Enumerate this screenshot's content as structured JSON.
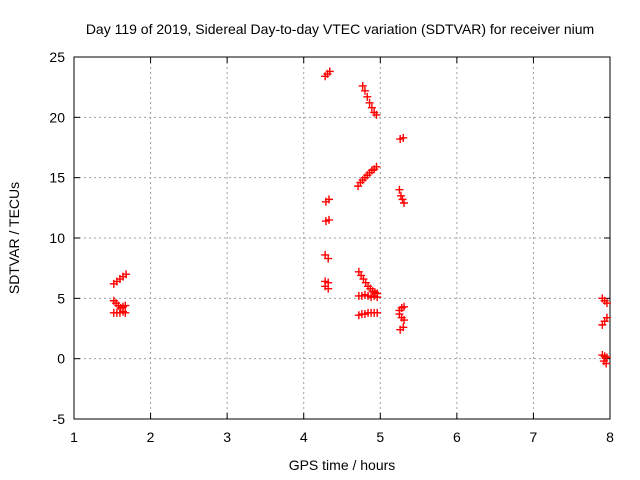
{
  "chart_data": {
    "type": "scatter",
    "title": "Day 119 of 2019, Sidereal Day-to-day VTEC variation (SDTVAR) for receiver nium",
    "xlabel": "GPS time / hours",
    "ylabel": "SDTVAR / TECUs",
    "xlim": [
      1,
      8
    ],
    "ylim": [
      -5,
      25
    ],
    "xticks": [
      "1",
      "2",
      "3",
      "4",
      "5",
      "6",
      "7",
      "8"
    ],
    "yticks": [
      "-5",
      "0",
      "5",
      "10",
      "15",
      "20",
      "25"
    ],
    "grid": true,
    "marker": "+",
    "color": "#ff0000",
    "series": [
      {
        "name": "seg1",
        "x": [
          1.52,
          1.56,
          1.6,
          1.64,
          1.68
        ],
        "y": [
          6.2,
          6.4,
          6.6,
          6.8,
          7.0
        ]
      },
      {
        "name": "seg2",
        "x": [
          1.52,
          1.55,
          1.58,
          1.61,
          1.64,
          1.67
        ],
        "y": [
          4.8,
          4.6,
          4.4,
          4.2,
          4.3,
          4.4
        ]
      },
      {
        "name": "seg3",
        "x": [
          1.52,
          1.56,
          1.6,
          1.64,
          1.67
        ],
        "y": [
          3.8,
          3.8,
          3.8,
          3.9,
          3.8
        ]
      },
      {
        "name": "seg4",
        "x": [
          4.28,
          4.31,
          4.34
        ],
        "y": [
          23.4,
          23.6,
          23.8
        ]
      },
      {
        "name": "seg5",
        "x": [
          4.29,
          4.33
        ],
        "y": [
          13.0,
          13.2
        ]
      },
      {
        "name": "seg6",
        "x": [
          4.29,
          4.33
        ],
        "y": [
          11.4,
          11.5
        ]
      },
      {
        "name": "seg7",
        "x": [
          4.28,
          4.32
        ],
        "y": [
          8.6,
          8.3
        ]
      },
      {
        "name": "seg8",
        "x": [
          4.28,
          4.32
        ],
        "y": [
          6.4,
          6.3
        ]
      },
      {
        "name": "seg9",
        "x": [
          4.28,
          4.32
        ],
        "y": [
          6.0,
          5.8
        ]
      },
      {
        "name": "seg10",
        "x": [
          4.77,
          4.8,
          4.83,
          4.86,
          4.89,
          4.92,
          4.95
        ],
        "y": [
          22.6,
          22.2,
          21.7,
          21.2,
          20.8,
          20.4,
          20.2
        ]
      },
      {
        "name": "seg11",
        "x": [
          4.71,
          4.74,
          4.77,
          4.8,
          4.83,
          4.86,
          4.89,
          4.92,
          4.95
        ],
        "y": [
          14.3,
          14.6,
          14.8,
          15.0,
          15.2,
          15.4,
          15.6,
          15.7,
          15.9
        ]
      },
      {
        "name": "seg12",
        "x": [
          4.72,
          4.75,
          4.78,
          4.81,
          4.84,
          4.87,
          4.9,
          4.93,
          4.96
        ],
        "y": [
          7.2,
          6.9,
          6.6,
          6.3,
          6.0,
          5.8,
          5.6,
          5.5,
          5.4
        ]
      },
      {
        "name": "seg13",
        "x": [
          4.72,
          4.76,
          4.8,
          4.84,
          4.88,
          4.92,
          4.96
        ],
        "y": [
          5.2,
          5.2,
          5.3,
          5.2,
          5.1,
          5.2,
          5.1
        ]
      },
      {
        "name": "seg14",
        "x": [
          4.72,
          4.76,
          4.8,
          4.84,
          4.88,
          4.92,
          4.96
        ],
        "y": [
          3.6,
          3.7,
          3.7,
          3.8,
          3.8,
          3.8,
          3.8
        ]
      },
      {
        "name": "seg15",
        "x": [
          5.26,
          5.3
        ],
        "y": [
          18.2,
          18.3
        ]
      },
      {
        "name": "seg16",
        "x": [
          5.25,
          5.27,
          5.29,
          5.31
        ],
        "y": [
          14.0,
          13.5,
          13.2,
          12.9
        ]
      },
      {
        "name": "seg17",
        "x": [
          5.25,
          5.28,
          5.31
        ],
        "y": [
          4.0,
          4.2,
          4.3
        ]
      },
      {
        "name": "seg18",
        "x": [
          5.25,
          5.28,
          5.31
        ],
        "y": [
          3.7,
          3.4,
          3.2
        ]
      },
      {
        "name": "seg19",
        "x": [
          5.26,
          5.3
        ],
        "y": [
          2.4,
          2.6
        ]
      },
      {
        "name": "seg20",
        "x": [
          7.9,
          7.93,
          7.96
        ],
        "y": [
          5.0,
          4.8,
          4.6
        ]
      },
      {
        "name": "seg21",
        "x": [
          7.9,
          7.93,
          7.96
        ],
        "y": [
          2.8,
          3.1,
          3.4
        ]
      },
      {
        "name": "seg22",
        "x": [
          7.9,
          7.93,
          7.96,
          7.92,
          7.95
        ],
        "y": [
          0.3,
          0.2,
          0.1,
          -0.2,
          -0.4
        ]
      }
    ]
  }
}
